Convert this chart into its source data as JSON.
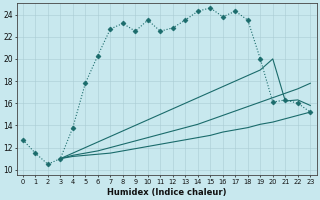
{
  "xlabel": "Humidex (Indice chaleur)",
  "bg_color": "#c8e8ee",
  "grid_color": "#aaccd4",
  "line_color": "#1a6b6b",
  "xlim": [
    -0.5,
    23.5
  ],
  "ylim": [
    9.5,
    25.0
  ],
  "xticks": [
    0,
    1,
    2,
    3,
    4,
    5,
    6,
    7,
    8,
    9,
    10,
    11,
    12,
    13,
    14,
    15,
    16,
    17,
    18,
    19,
    20,
    21,
    22,
    23
  ],
  "yticks": [
    10,
    12,
    14,
    16,
    18,
    20,
    22,
    24
  ],
  "curve1_x": [
    0,
    1,
    2,
    3,
    4,
    5,
    6,
    7,
    8,
    9,
    10,
    11,
    12,
    13,
    14,
    15,
    16,
    17,
    18,
    19,
    20,
    21,
    22,
    23
  ],
  "curve1_y": [
    12.7,
    11.5,
    10.5,
    11.0,
    13.8,
    17.8,
    20.3,
    22.7,
    23.2,
    22.5,
    23.5,
    22.5,
    22.8,
    23.5,
    24.3,
    24.6,
    23.8,
    24.3,
    23.5,
    20.0,
    16.1,
    16.3,
    16.0,
    15.2
  ],
  "curve2_x": [
    3,
    4,
    5,
    6,
    7,
    8,
    9,
    10,
    11,
    12,
    13,
    14,
    15,
    16,
    17,
    18,
    19,
    20,
    21,
    22,
    23
  ],
  "curve2_y": [
    11.0,
    11.2,
    11.3,
    11.4,
    11.5,
    11.7,
    11.9,
    12.1,
    12.3,
    12.5,
    12.7,
    12.9,
    13.1,
    13.4,
    13.6,
    13.8,
    14.1,
    14.3,
    14.6,
    14.9,
    15.2
  ],
  "curve3_x": [
    3,
    4,
    5,
    6,
    7,
    8,
    9,
    10,
    11,
    12,
    13,
    14,
    15,
    16,
    17,
    18,
    19,
    20,
    21,
    22,
    23
  ],
  "curve3_y": [
    11.0,
    11.3,
    11.5,
    11.7,
    12.0,
    12.3,
    12.6,
    12.9,
    13.2,
    13.5,
    13.8,
    14.1,
    14.5,
    14.9,
    15.3,
    15.7,
    16.1,
    16.5,
    16.9,
    17.3,
    17.8
  ],
  "curve4_x": [
    3,
    4,
    5,
    6,
    7,
    8,
    9,
    10,
    11,
    12,
    13,
    14,
    15,
    16,
    17,
    18,
    19,
    20,
    21,
    22,
    23
  ],
  "curve4_y": [
    11.0,
    11.5,
    12.0,
    12.5,
    13.0,
    13.5,
    14.0,
    14.5,
    15.0,
    15.5,
    16.0,
    16.5,
    17.0,
    17.5,
    18.0,
    18.5,
    19.0,
    20.0,
    16.2,
    16.3,
    15.8
  ]
}
